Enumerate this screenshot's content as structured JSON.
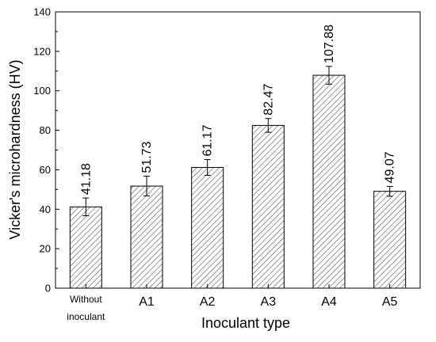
{
  "chart_data": {
    "type": "bar",
    "title": "",
    "xlabel": "Inoculant type",
    "ylabel": "Vicker's microhardness (HV)",
    "categories": [
      [
        "Without",
        "inoculant"
      ],
      [
        "A1"
      ],
      [
        "A2"
      ],
      [
        "A3"
      ],
      [
        "A4"
      ],
      [
        "A5"
      ]
    ],
    "values": [
      41.18,
      51.73,
      61.17,
      82.47,
      107.88,
      49.07
    ],
    "value_labels": [
      "41.18",
      "51.73",
      "61.17",
      "82.47",
      "107.88",
      "49.07"
    ],
    "errors": [
      4.5,
      5.0,
      4.0,
      3.5,
      4.5,
      2.5
    ],
    "ylim": [
      0,
      140
    ],
    "yticks": [
      0,
      20,
      40,
      60,
      80,
      100,
      120,
      140
    ],
    "bar_fill": "hatched",
    "grid": false,
    "legend": "none",
    "colors": {
      "axis": "#000000",
      "bar_edge": "#000000",
      "hatch": "#555555"
    }
  }
}
